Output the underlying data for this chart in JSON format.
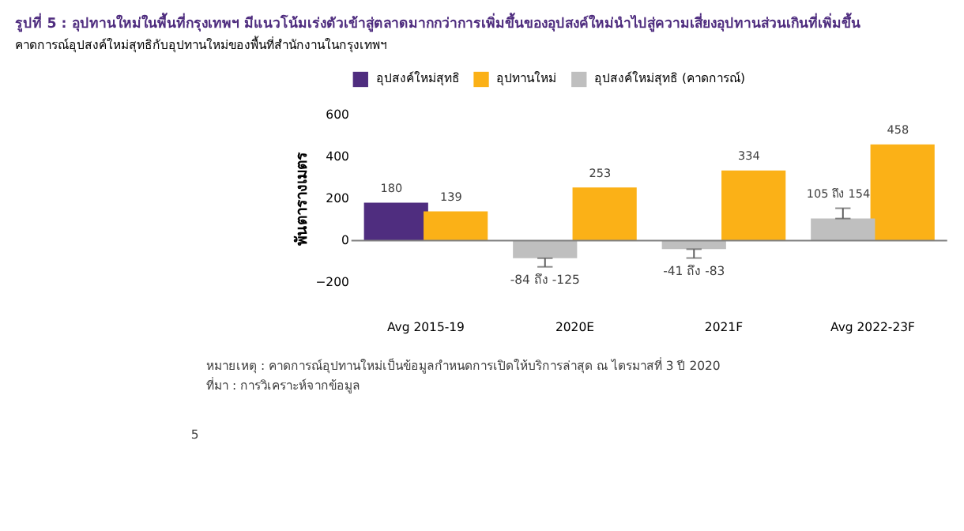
{
  "chart_data": {
    "type": "bar",
    "title": "รูปที่ 5 : อุปทานใหม่ในพื้นที่กรุงเทพฯ มีแนวโน้มเร่งตัวเข้าสู่ตลาดมากกว่าการเพิ่มขึ้นของอุปสงค์ใหม่นำไปสู่ความเสี่ยงอุปทานส่วนเกินที่เพิ่มขึ้น",
    "subtitle": "คาดการณ์อุปสงค์ใหม่สุทธิกับอุปทานใหม่ของพื้นที่สำนักงานในกรุงเทพฯ",
    "ylabel": "พันตารางเมตร",
    "categories": [
      "Avg 2015-19",
      "2020E",
      "2021F",
      "Avg 2022-23F"
    ],
    "series": [
      {
        "name": "อุปสงค์ใหม่สุทธิ",
        "color": "#4f2d7f",
        "values": [
          180,
          null,
          null,
          null
        ],
        "value_labels": [
          "180",
          null,
          null,
          null
        ]
      },
      {
        "name": "อุปทานใหม่",
        "color": "#fbb117",
        "values": [
          139,
          253,
          334,
          458
        ],
        "value_labels": [
          "139",
          "253",
          "334",
          "458"
        ]
      },
      {
        "name": "อุปสงค์ใหม่สุทธิ (คาดการณ์)",
        "color": "#bfbfbf",
        "values": [
          null,
          -84,
          -41,
          105
        ],
        "errors": [
          null,
          [
            -125,
            -84
          ],
          [
            -83,
            -41
          ],
          [
            105,
            154
          ]
        ],
        "value_labels": [
          null,
          "-84 ถึง -125",
          "-41 ถึง -83",
          "105 ถึง 154"
        ]
      }
    ],
    "ref_lines": [
      {
        "axis": "y",
        "value": 0,
        "color": "#808080"
      }
    ],
    "ylim": [
      -200,
      600
    ],
    "yticks": [
      -200,
      0,
      200,
      400,
      600
    ],
    "grid": false,
    "legend": "top",
    "annotations": [
      "หมายเหตุ : คาดการณ์อุปทานใหม่เป็นข้อมูลกำหนดการเปิดให้บริการล่าสุด ณ ไตรมาสที่ 3 ปี 2020",
      "ที่มา : การวิเคราะห์จากข้อมูล",
      "5"
    ]
  }
}
